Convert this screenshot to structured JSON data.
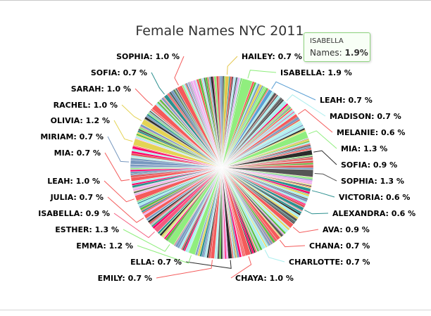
{
  "chart_data": {
    "type": "pie",
    "title": "Female Names NYC 2011",
    "unit": "%",
    "labeled_slices": [
      {
        "name": "HAILEY",
        "value": 0.7,
        "color": "#e4c64a"
      },
      {
        "name": "ISABELLA",
        "value": 1.9,
        "color": "#90ee7e"
      },
      {
        "name": "LEAH",
        "value": 0.7,
        "color": "#5a9fd4"
      },
      {
        "name": "MADISON",
        "value": 0.7,
        "color": "#aaeeee"
      },
      {
        "name": "MELANIE",
        "value": 0.6,
        "color": "#f45b5b"
      },
      {
        "name": "MIA",
        "value": 1.3,
        "color": "#90ee7e"
      },
      {
        "name": "SOFIA",
        "value": 0.9,
        "color": "#2b2b2b"
      },
      {
        "name": "SOPHIA",
        "value": 1.3,
        "color": "#555555"
      },
      {
        "name": "VICTORIA",
        "value": 0.6,
        "color": "#2b908f"
      },
      {
        "name": "ALEXANDRA",
        "value": 0.6,
        "color": "#2b908f"
      },
      {
        "name": "AVA",
        "value": 0.9,
        "color": "#f45b5b"
      },
      {
        "name": "CHANA",
        "value": 0.7,
        "color": "#f45b5b"
      },
      {
        "name": "CHARLOTTE",
        "value": 0.7,
        "color": "#aaeeee"
      },
      {
        "name": "CHAYA",
        "value": 1.0,
        "color": "#f45b5b"
      },
      {
        "name": "ELLA",
        "value": 0.7,
        "color": "#2b2b2b"
      },
      {
        "name": "EMILY",
        "value": 0.7,
        "color": "#f45b5b"
      },
      {
        "name": "EMMA",
        "value": 1.2,
        "color": "#90ee7e"
      },
      {
        "name": "ESTHER",
        "value": 1.3,
        "color": "#90ee7e"
      },
      {
        "name": "ISABELLA",
        "value": 0.9,
        "color": "#f45b7e"
      },
      {
        "name": "JULIA",
        "value": 0.7,
        "color": "#f45b5b"
      },
      {
        "name": "LEAH",
        "value": 1.0,
        "color": "#f45b5b"
      },
      {
        "name": "MIA",
        "value": 0.7,
        "color": "#f45b5b"
      },
      {
        "name": "MIRIAM",
        "value": 0.7,
        "color": "#7798bf"
      },
      {
        "name": "OLIVIA",
        "value": 1.2,
        "color": "#e4d354"
      },
      {
        "name": "RACHEL",
        "value": 1.0,
        "color": "#e4d354"
      },
      {
        "name": "SARAH",
        "value": 1.0,
        "color": "#f45b5b"
      },
      {
        "name": "SOFIA",
        "value": 0.7,
        "color": "#2b908f"
      },
      {
        "name": "SOPHIA",
        "value": 1.0,
        "color": "#f45b5b"
      }
    ],
    "palette": [
      "#90ee7e",
      "#f45b5b",
      "#7798bf",
      "#aaeeee",
      "#ff0066",
      "#eeaaee",
      "#55bf3b",
      "#df5353",
      "#7798bf",
      "#aaeeee",
      "#2b908f",
      "#e4d354",
      "#555555",
      "#2b2b2b"
    ]
  },
  "tooltip": {
    "title": "ISABELLA",
    "series_label": "Names:",
    "value": "1.9%"
  }
}
